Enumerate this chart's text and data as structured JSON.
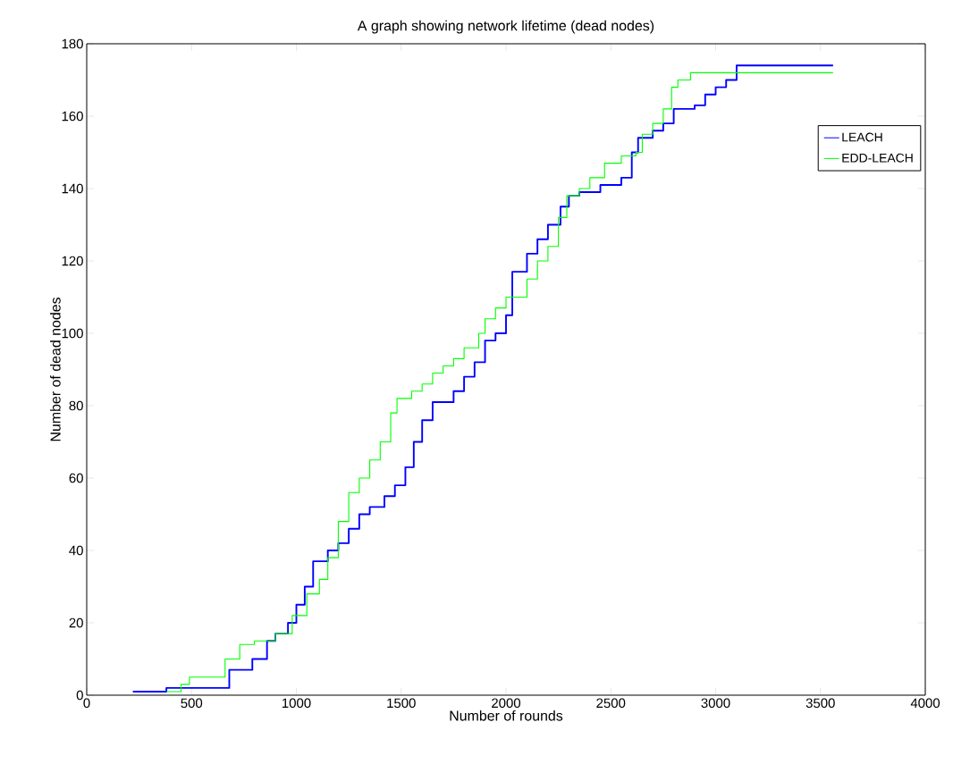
{
  "chart_data": {
    "type": "step",
    "title": "A graph showing network lifetime (dead nodes)",
    "xlabel": "Number of rounds",
    "ylabel": "Number of dead nodes",
    "xlim": [
      0,
      4000
    ],
    "ylim": [
      0,
      180
    ],
    "xticks": [
      0,
      500,
      1000,
      1500,
      2000,
      2500,
      3000,
      3500,
      4000
    ],
    "yticks": [
      0,
      20,
      40,
      60,
      80,
      100,
      120,
      140,
      160,
      180
    ],
    "grid": false,
    "legend": "top right",
    "series": [
      {
        "name": "LEACH",
        "color": "#0000ff",
        "x": [
          220,
          380,
          680,
          790,
          860,
          900,
          960,
          1000,
          1040,
          1080,
          1150,
          1200,
          1250,
          1300,
          1350,
          1420,
          1470,
          1520,
          1560,
          1600,
          1650,
          1750,
          1800,
          1850,
          1900,
          1950,
          2000,
          2030,
          2100,
          2150,
          2200,
          2260,
          2300,
          2350,
          2450,
          2550,
          2600,
          2630,
          2700,
          2750,
          2800,
          2900,
          2950,
          3000,
          3050,
          3100,
          3560
        ],
        "values": [
          1,
          2,
          7,
          10,
          15,
          17,
          20,
          25,
          30,
          37,
          40,
          42,
          46,
          50,
          52,
          55,
          58,
          63,
          70,
          76,
          81,
          84,
          88,
          92,
          98,
          100,
          105,
          117,
          122,
          126,
          130,
          135,
          138,
          139,
          141,
          143,
          150,
          154,
          156,
          158,
          162,
          163,
          166,
          168,
          170,
          174,
          174
        ]
      },
      {
        "name": "EDD-LEACH",
        "color": "#00ff00",
        "x": [
          380,
          450,
          490,
          660,
          730,
          800,
          900,
          980,
          1050,
          1110,
          1150,
          1200,
          1250,
          1300,
          1350,
          1400,
          1450,
          1480,
          1550,
          1600,
          1650,
          1700,
          1750,
          1800,
          1870,
          1900,
          1950,
          2000,
          2100,
          2150,
          2200,
          2250,
          2290,
          2350,
          2400,
          2470,
          2550,
          2620,
          2650,
          2700,
          2750,
          2790,
          2820,
          2880,
          3560
        ],
        "values": [
          1,
          3,
          5,
          10,
          14,
          15,
          17,
          22,
          28,
          32,
          38,
          48,
          56,
          60,
          65,
          70,
          78,
          82,
          84,
          86,
          89,
          91,
          93,
          96,
          100,
          104,
          107,
          110,
          115,
          120,
          124,
          132,
          138,
          140,
          143,
          147,
          149,
          150,
          155,
          158,
          162,
          168,
          170,
          172,
          172
        ]
      }
    ]
  }
}
